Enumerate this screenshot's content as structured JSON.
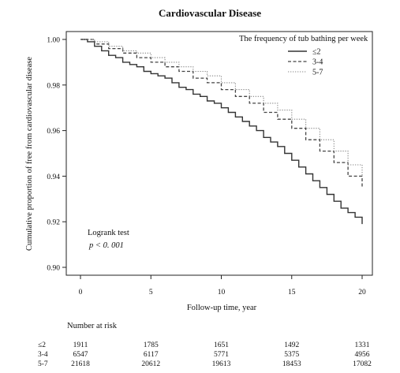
{
  "chart_data": {
    "type": "line",
    "title": "Cardiovascular Disease",
    "xlabel": "Follow-up time, year",
    "ylabel": "Cumulative proportion of free from cardiovascular disease",
    "xlim": [
      0,
      20
    ],
    "ylim": [
      0.9,
      1.0
    ],
    "x_ticks": [
      0,
      5,
      10,
      15,
      20
    ],
    "x_tick_labels": [
      "0",
      "5",
      "10",
      "15",
      "20"
    ],
    "y_ticks": [
      0.9,
      0.92,
      0.94,
      0.96,
      0.98,
      1.0
    ],
    "y_tick_labels": [
      "0.90",
      "0.92",
      "0.94",
      "0.96",
      "0.98",
      "1.00"
    ],
    "grid": false,
    "legend": {
      "title": "The frequency of tub bathing per week",
      "placement": "top-right"
    },
    "series": [
      {
        "name": "≤2",
        "color": "#333333",
        "style": "solid",
        "x": [
          0,
          0.5,
          1,
          1.5,
          2,
          2.5,
          3,
          3.5,
          4,
          4.5,
          5,
          5.5,
          6,
          6.5,
          7,
          7.5,
          8,
          8.5,
          9,
          9.5,
          10,
          10.5,
          11,
          11.5,
          12,
          12.5,
          13,
          13.5,
          14,
          14.5,
          15,
          15.5,
          16,
          16.5,
          17,
          17.5,
          18,
          18.5,
          19,
          19.5,
          20
        ],
        "y": [
          1.0,
          0.999,
          0.997,
          0.995,
          0.993,
          0.992,
          0.99,
          0.989,
          0.988,
          0.986,
          0.985,
          0.984,
          0.983,
          0.981,
          0.979,
          0.978,
          0.976,
          0.975,
          0.973,
          0.972,
          0.97,
          0.968,
          0.966,
          0.964,
          0.962,
          0.96,
          0.957,
          0.955,
          0.953,
          0.95,
          0.947,
          0.944,
          0.941,
          0.938,
          0.935,
          0.932,
          0.929,
          0.926,
          0.924,
          0.922,
          0.919
        ]
      },
      {
        "name": "3-4",
        "color": "#444444",
        "style": "dashed",
        "x": [
          0,
          1,
          2,
          3,
          4,
          5,
          6,
          7,
          8,
          9,
          10,
          11,
          12,
          13,
          14,
          15,
          16,
          17,
          18,
          19,
          20
        ],
        "y": [
          1.0,
          0.998,
          0.996,
          0.994,
          0.992,
          0.99,
          0.988,
          0.986,
          0.983,
          0.981,
          0.978,
          0.975,
          0.972,
          0.968,
          0.965,
          0.961,
          0.956,
          0.951,
          0.946,
          0.94,
          0.935
        ]
      },
      {
        "name": "5-7",
        "color": "#888888",
        "style": "dotted",
        "x": [
          0,
          1,
          2,
          3,
          4,
          5,
          6,
          7,
          8,
          9,
          10,
          11,
          12,
          13,
          14,
          15,
          16,
          17,
          18,
          19,
          20
        ],
        "y": [
          1.0,
          0.999,
          0.997,
          0.995,
          0.994,
          0.992,
          0.99,
          0.988,
          0.986,
          0.984,
          0.981,
          0.978,
          0.975,
          0.972,
          0.969,
          0.965,
          0.961,
          0.956,
          0.951,
          0.945,
          0.94
        ]
      }
    ],
    "annotations": {
      "test_name": "Logrank test",
      "p_value": "p < 0. 001"
    },
    "risk_table": {
      "title": "Number at risk",
      "rows": [
        {
          "label": "≤2",
          "values": [
            "1911",
            "1785",
            "1651",
            "1492",
            "1331"
          ]
        },
        {
          "label": "3-4",
          "values": [
            "6547",
            "6117",
            "5771",
            "5375",
            "4956"
          ]
        },
        {
          "label": "5-7",
          "values": [
            "21618",
            "20612",
            "19613",
            "18453",
            "17082"
          ]
        }
      ]
    }
  }
}
